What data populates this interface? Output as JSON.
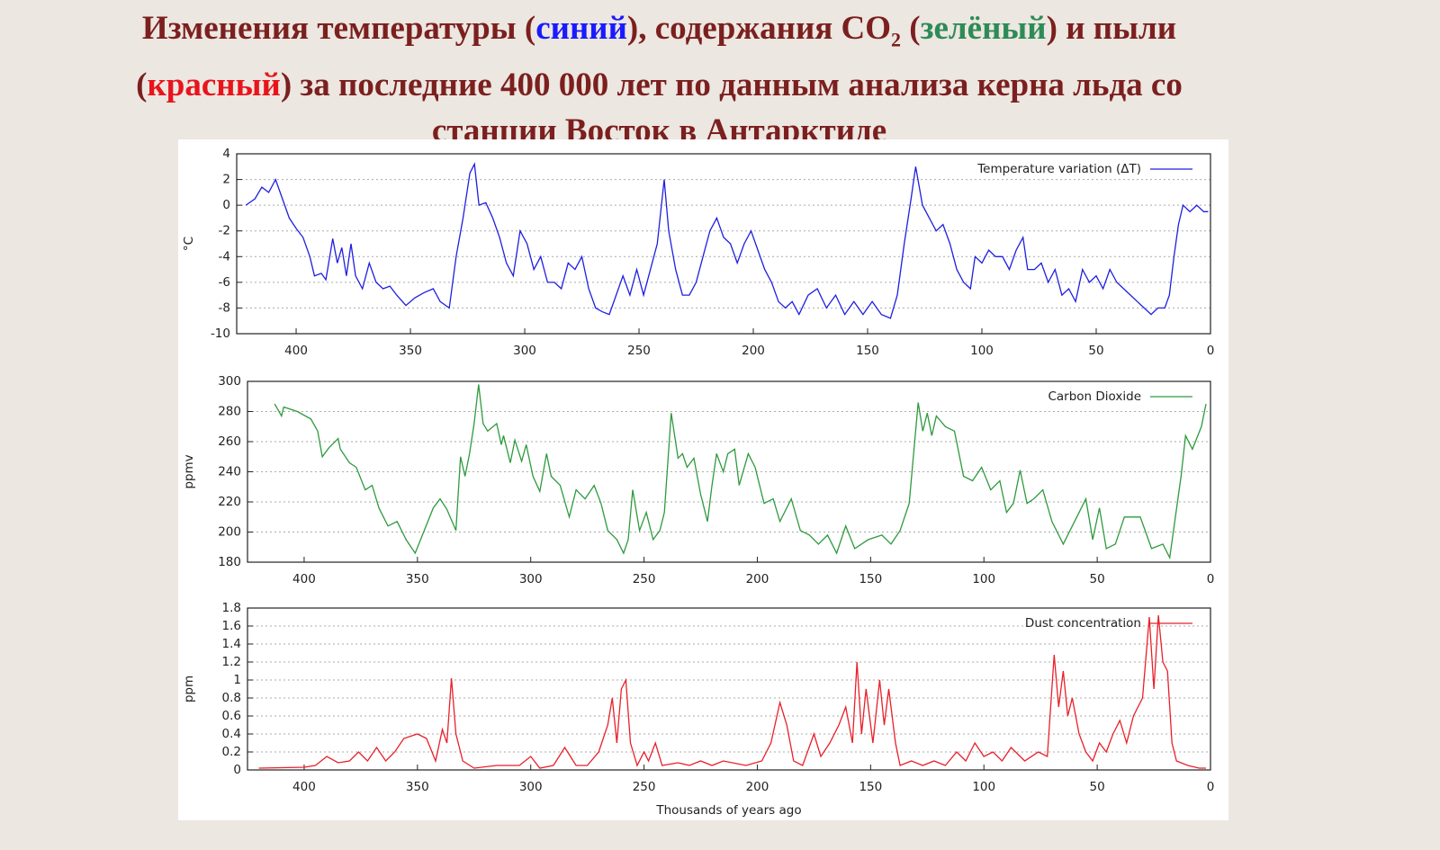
{
  "title": {
    "color": "#7b1f1f",
    "lines": [
      [
        {
          "text": "Изменения температуры ("
        },
        {
          "text": "синий",
          "color": "#1a1aff"
        },
        {
          "text": "), содержания CO"
        },
        {
          "text": "2",
          "subscript": true
        },
        {
          "text": " ("
        },
        {
          "text": "зелёный",
          "color": "#2e8b57"
        },
        {
          "text": ") и пыли"
        }
      ],
      [
        {
          "text": "("
        },
        {
          "text": "красный",
          "color": "#e8141c"
        },
        {
          "text": ") за последние 400 000 лет по данным анализа керна льда со"
        }
      ],
      [
        {
          "text": "станции Восток в Антарктиде"
        }
      ]
    ]
  },
  "chart_data": [
    {
      "type": "line",
      "ylabel": "°C",
      "xlim": [
        426,
        0
      ],
      "ylim": [
        -10,
        4
      ],
      "xticks": [
        400,
        350,
        300,
        250,
        200,
        150,
        100,
        50,
        0
      ],
      "yticks": [
        -10,
        -8,
        -6,
        -4,
        -2,
        0,
        2,
        4
      ],
      "grid": true,
      "legend": "upper right",
      "x": [
        422,
        418,
        415,
        412,
        409,
        406,
        403,
        400,
        397,
        394,
        392,
        389,
        387,
        384,
        382,
        380,
        378,
        376,
        374,
        371,
        368,
        365,
        362,
        359,
        356,
        352,
        348,
        344,
        340,
        337,
        333,
        330,
        327,
        324,
        322,
        320,
        317,
        314,
        311,
        308,
        305,
        302,
        299,
        296,
        293,
        290,
        287,
        284,
        281,
        278,
        275,
        272,
        269,
        266,
        263,
        260,
        257,
        254,
        251,
        248,
        245,
        242,
        239,
        237,
        234,
        231,
        228,
        225,
        222,
        219,
        216,
        213,
        210,
        207,
        204,
        201,
        198,
        195,
        192,
        189,
        186,
        183,
        180,
        176,
        172,
        168,
        164,
        160,
        156,
        152,
        148,
        144,
        140,
        137,
        134,
        131,
        129,
        126,
        123,
        120,
        117,
        114,
        111,
        108,
        105,
        103,
        100,
        97,
        94,
        91,
        88,
        85,
        82,
        80,
        77,
        74,
        71,
        68,
        65,
        62,
        59,
        56,
        53,
        50,
        47,
        44,
        41,
        38,
        35,
        32,
        29,
        26,
        23,
        20,
        18,
        16,
        14,
        12,
        9,
        6,
        3,
        1
      ],
      "series": [
        {
          "name": "Temperature variation (ΔT)",
          "color": "#1f1fe0",
          "values": [
            0,
            0.5,
            1.4,
            1.0,
            2.0,
            0.5,
            -1,
            -1.8,
            -2.5,
            -4,
            -5.5,
            -5.3,
            -5.8,
            -2.6,
            -4.5,
            -3.3,
            -5.5,
            -3,
            -5.5,
            -6.5,
            -4.5,
            -6,
            -6.5,
            -6.3,
            -7,
            -7.8,
            -7.2,
            -6.8,
            -6.5,
            -7.5,
            -8,
            -4,
            -1,
            2.5,
            3.2,
            0,
            0.2,
            -1,
            -2.5,
            -4.5,
            -5.5,
            -2,
            -3,
            -5,
            -4,
            -6,
            -6,
            -6.5,
            -4.5,
            -5,
            -4,
            -6.5,
            -8,
            -8.3,
            -8.5,
            -7,
            -5.5,
            -7,
            -5,
            -7,
            -5,
            -3,
            2,
            -2,
            -5,
            -7,
            -7,
            -6,
            -4,
            -2,
            -1,
            -2.5,
            -3,
            -4.5,
            -3,
            -2,
            -3.5,
            -5,
            -6,
            -7.5,
            -8,
            -7.5,
            -8.5,
            -7,
            -6.5,
            -8,
            -7,
            -8.5,
            -7.5,
            -8.5,
            -7.5,
            -8.5,
            -8.8,
            -7,
            -3,
            0.5,
            3,
            0,
            -1,
            -2,
            -1.5,
            -3,
            -5,
            -6,
            -6.5,
            -4,
            -4.5,
            -3.5,
            -4,
            -4,
            -5,
            -3.5,
            -2.5,
            -5,
            -5,
            -4.5,
            -6,
            -5,
            -7,
            -6.5,
            -7.5,
            -5,
            -6,
            -5.5,
            -6.5,
            -5,
            -6,
            -6.5,
            -7,
            -7.5,
            -8,
            -8.5,
            -8,
            -8,
            -7,
            -4,
            -1.5,
            0,
            -0.5,
            0,
            -0.5,
            -0.5
          ]
        }
      ]
    },
    {
      "type": "line",
      "ylabel": "ppmv",
      "xlim": [
        425,
        0
      ],
      "ylim": [
        180,
        300
      ],
      "xticks": [
        400,
        350,
        300,
        250,
        200,
        150,
        100,
        50,
        0
      ],
      "yticks": [
        180,
        200,
        220,
        240,
        260,
        280,
        300
      ],
      "grid": true,
      "legend": "upper right",
      "x": [
        413,
        410,
        409,
        403,
        397,
        394,
        392,
        389,
        385,
        384,
        380,
        377,
        373,
        370,
        367,
        363,
        359,
        355,
        351,
        347,
        343,
        340,
        337,
        333,
        331,
        329,
        327,
        325,
        323,
        321,
        319,
        315,
        313,
        312,
        309,
        307,
        304,
        302,
        299,
        296,
        293,
        291,
        287,
        283,
        280,
        276,
        272,
        269,
        266,
        262,
        259,
        257,
        255,
        252,
        249,
        246,
        243,
        241,
        238,
        235,
        233,
        231,
        228,
        225,
        222,
        220,
        218,
        215,
        213,
        210,
        208,
        204,
        201,
        197,
        193,
        190,
        185,
        181,
        177,
        173,
        169,
        165,
        161,
        157,
        151,
        145,
        141,
        137,
        133,
        129,
        127,
        125,
        123,
        121,
        117,
        113,
        109,
        105,
        101,
        97,
        93,
        90,
        87,
        84,
        81,
        78,
        74,
        70,
        65,
        62,
        58,
        55,
        52,
        49,
        46,
        42,
        38,
        31,
        26,
        21,
        18,
        13,
        11,
        8,
        4,
        2
      ],
      "series": [
        {
          "name": "Carbon Dioxide",
          "color": "#2e9a3e",
          "values": [
            285,
            277,
            283,
            280,
            275,
            267,
            250,
            256,
            262,
            255,
            246,
            243,
            228,
            231,
            216,
            204,
            207,
            195,
            186,
            201,
            216,
            222,
            215,
            201,
            250,
            237,
            252,
            272,
            298,
            272,
            267,
            272,
            258,
            264,
            246,
            261,
            247,
            258,
            237,
            227,
            252,
            237,
            231,
            210,
            228,
            222,
            231,
            219,
            201,
            195,
            186,
            195,
            228,
            201,
            213,
            195,
            201,
            213,
            279,
            249,
            252,
            243,
            249,
            225,
            207,
            231,
            252,
            240,
            252,
            255,
            231,
            252,
            243,
            219,
            222,
            207,
            222,
            201,
            198,
            192,
            198,
            186,
            204,
            189,
            195,
            198,
            192,
            201,
            219,
            286,
            267,
            279,
            264,
            277,
            270,
            267,
            237,
            234,
            243,
            228,
            234,
            213,
            219,
            241,
            219,
            222,
            228,
            207,
            192,
            201,
            213,
            222,
            195,
            216,
            189,
            192,
            210,
            210,
            189,
            192,
            183,
            237,
            264,
            255,
            270,
            285
          ]
        }
      ]
    },
    {
      "type": "line",
      "ylabel": "ppm",
      "xlabel": "Thousands of years ago",
      "xlim": [
        425,
        0
      ],
      "ylim": [
        0,
        1.8
      ],
      "xticks": [
        400,
        350,
        300,
        250,
        200,
        150,
        100,
        50,
        0
      ],
      "yticks": [
        0,
        0.2,
        0.4,
        0.6,
        0.8,
        1,
        1.2,
        1.4,
        1.6,
        1.8
      ],
      "grid": true,
      "legend": "upper right",
      "x": [
        420,
        400,
        395,
        390,
        385,
        380,
        376,
        372,
        368,
        364,
        360,
        356,
        350,
        346,
        342,
        339,
        337,
        335,
        333,
        330,
        325,
        315,
        305,
        300,
        296,
        290,
        285,
        280,
        275,
        270,
        266,
        264,
        262,
        260,
        258,
        256,
        253,
        250,
        248,
        245,
        242,
        235,
        230,
        225,
        220,
        215,
        205,
        198,
        194,
        190,
        187,
        184,
        180,
        175,
        172,
        168,
        164,
        161,
        158,
        156,
        154,
        152,
        149,
        146,
        144,
        142,
        139,
        137,
        132,
        127,
        122,
        117,
        112,
        108,
        104,
        100,
        96,
        92,
        88,
        82,
        76,
        72,
        69,
        67,
        65,
        63,
        61,
        58,
        55,
        52,
        49,
        46,
        43,
        40,
        37,
        34,
        30,
        27,
        25,
        23,
        21,
        19,
        17,
        15,
        10,
        5,
        2
      ],
      "series": [
        {
          "name": "Dust concentration",
          "color": "#e8202a",
          "values": [
            0.02,
            0.03,
            0.05,
            0.15,
            0.08,
            0.1,
            0.2,
            0.1,
            0.25,
            0.1,
            0.2,
            0.35,
            0.4,
            0.35,
            0.1,
            0.45,
            0.3,
            1.02,
            0.4,
            0.1,
            0.02,
            0.05,
            0.05,
            0.15,
            0.02,
            0.05,
            0.25,
            0.05,
            0.05,
            0.2,
            0.5,
            0.8,
            0.3,
            0.9,
            1.0,
            0.3,
            0.05,
            0.2,
            0.1,
            0.3,
            0.05,
            0.08,
            0.05,
            0.1,
            0.05,
            0.1,
            0.05,
            0.1,
            0.3,
            0.75,
            0.5,
            0.1,
            0.05,
            0.4,
            0.15,
            0.3,
            0.5,
            0.7,
            0.3,
            1.2,
            0.4,
            0.9,
            0.3,
            1.0,
            0.5,
            0.9,
            0.3,
            0.05,
            0.1,
            0.05,
            0.1,
            0.05,
            0.2,
            0.1,
            0.3,
            0.15,
            0.2,
            0.1,
            0.25,
            0.1,
            0.2,
            0.15,
            1.28,
            0.7,
            1.1,
            0.6,
            0.8,
            0.4,
            0.2,
            0.1,
            0.3,
            0.2,
            0.4,
            0.55,
            0.3,
            0.6,
            0.8,
            1.7,
            0.9,
            1.72,
            1.2,
            1.1,
            0.3,
            0.1,
            0.05,
            0.02,
            0.02
          ]
        }
      ]
    }
  ]
}
